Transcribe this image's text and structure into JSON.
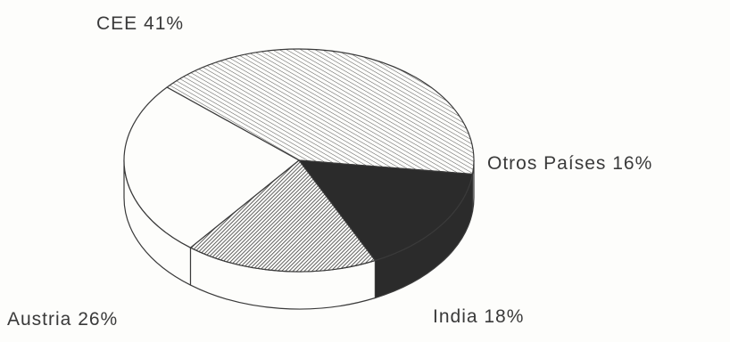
{
  "chart_data": {
    "type": "pie",
    "style": "3d-pie",
    "title": "",
    "slices": [
      {
        "label": "CEE 41%",
        "name": "CEE",
        "value": 41,
        "fill": "hatch-light"
      },
      {
        "label": "Otros Países 16%",
        "name": "Otros Países",
        "value": 16,
        "fill": "solid-dark"
      },
      {
        "label": "India 18%",
        "name": "India",
        "value": 18,
        "fill": "hatch-dense"
      },
      {
        "label": "Austria 26%",
        "name": "Austria",
        "value": 26,
        "fill": "white"
      }
    ],
    "colors": {
      "dark": "#2b2b2b",
      "hatch": "#4a4a4a",
      "outline": "#3a3a3a",
      "white": "#fdfdfb"
    }
  }
}
